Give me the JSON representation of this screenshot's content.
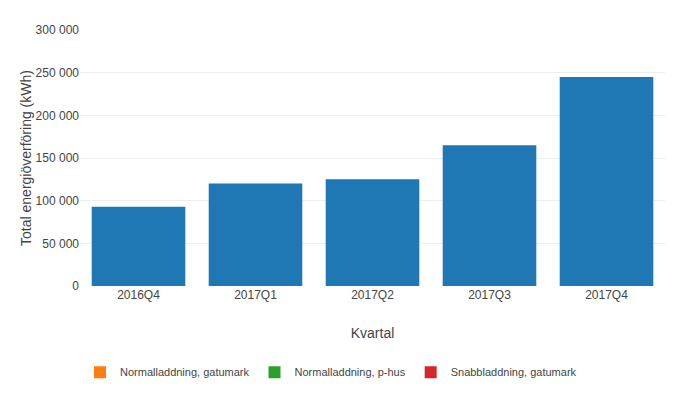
{
  "chart_data": {
    "type": "bar",
    "categories": [
      "2016Q4",
      "2017Q1",
      "2017Q2",
      "2017Q3",
      "2017Q4"
    ],
    "values": [
      93000,
      120000,
      125000,
      165000,
      245000
    ],
    "xlabel": "Kvartal",
    "ylabel": "Total energiöverföring (kWh)",
    "ylim": [
      0,
      300000
    ],
    "yticks": [
      0,
      {
        "value": 50000,
        "label": "50 000"
      },
      {
        "value": 100000,
        "label": "100 000"
      },
      {
        "value": 150000,
        "label": "150 000"
      },
      {
        "value": 200000,
        "label": "200 000"
      },
      {
        "value": 250000,
        "label": "250 000"
      },
      {
        "value": 300000,
        "label": "300 000"
      }
    ],
    "grid": true,
    "legend": "lower left",
    "legend_labels": [
      "Normalladdning, gatumark",
      "Normalladdning, p-hus",
      "Snabbladdning, gatumark"
    ]
  }
}
